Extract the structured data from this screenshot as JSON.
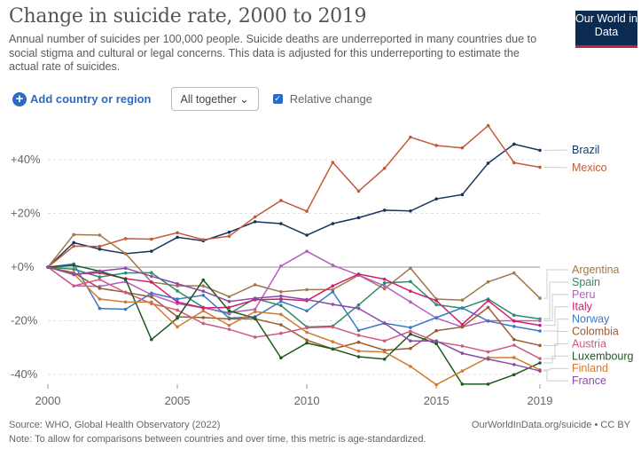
{
  "header": {
    "title": "Change in suicide rate, 2000 to 2019",
    "subtitle": "Annual number of suicides per 100,000 people. Suicide deaths are underreported in many countries due to social stigma and cultural or legal concerns. This data is adjusted for this underreporting to estimate the actual rate of suicides.",
    "logo": "Our World in Data"
  },
  "controls": {
    "add_label": "Add country or region",
    "select_value": "All together",
    "checkbox_label": "Relative change",
    "checkbox_checked": true
  },
  "footer": {
    "source": "Source: WHO, Global Health Observatory (2022)",
    "note": "Note: To allow for comparisons between countries and over time, this metric is age-standardized.",
    "url": "OurWorldInData.org/suicide • CC BY"
  },
  "chart_data": {
    "type": "line",
    "title": "Change in suicide rate, 2000 to 2019",
    "xlabel": "",
    "ylabel": "Relative change (%)",
    "xlim": [
      2000,
      2019
    ],
    "ylim": [
      -45,
      55
    ],
    "x_ticks": [
      2000,
      2005,
      2010,
      2015,
      2019
    ],
    "y_ticks": [
      {
        "v": 40,
        "label": "+40%"
      },
      {
        "v": 20,
        "label": "+20%"
      },
      {
        "v": 0,
        "label": "+0%"
      },
      {
        "v": -20,
        "label": "-20%"
      },
      {
        "v": -40,
        "label": "-40%"
      }
    ],
    "x": [
      2000,
      2001,
      2002,
      2003,
      2004,
      2005,
      2006,
      2007,
      2008,
      2009,
      2010,
      2011,
      2012,
      2013,
      2014,
      2015,
      2016,
      2017,
      2018,
      2019
    ],
    "series": [
      {
        "name": "Brazil",
        "color": "#17345f",
        "values": [
          0,
          9.1,
          6.7,
          5.0,
          5.9,
          11.1,
          9.8,
          13.0,
          16.9,
          16.2,
          11.9,
          16.2,
          18.4,
          21.2,
          20.9,
          25.4,
          27.0,
          38.7,
          45.8,
          43.5
        ]
      },
      {
        "name": "Mexico",
        "color": "#c4583b",
        "values": [
          0,
          7.8,
          7.7,
          10.6,
          10.4,
          12.8,
          10.2,
          11.5,
          18.7,
          24.8,
          20.8,
          39.0,
          28.3,
          36.8,
          48.4,
          45.3,
          44.4,
          52.7,
          38.9,
          37.2
        ]
      },
      {
        "name": "Argentina",
        "color": "#a4774a",
        "values": [
          0,
          12.1,
          11.9,
          5.0,
          -5.6,
          -7,
          -7,
          -11,
          -6.6,
          -9.2,
          -8.4,
          -8.4,
          -3,
          -8.1,
          -0.4,
          -11.9,
          -12.3,
          -5.5,
          -2.2,
          -11.6
        ]
      },
      {
        "name": "Spain",
        "color": "#2f8a6a",
        "values": [
          0,
          -0.8,
          -3.7,
          -2.2,
          -2.1,
          -8.9,
          -15,
          -17.4,
          -11.7,
          -14.3,
          -22.3,
          -22,
          -14.1,
          -5.9,
          -5.4,
          -14,
          -15.3,
          -11.9,
          -17.9,
          -19.3
        ]
      },
      {
        "name": "Peru",
        "color": "#b45fbf",
        "values": [
          0,
          -7,
          -7.2,
          -5.4,
          -10.3,
          -13.6,
          -15.2,
          -17,
          -15.7,
          0.4,
          5.9,
          0.7,
          -3,
          -7,
          -13,
          -19,
          -22.3,
          -20,
          -20,
          -20
        ]
      },
      {
        "name": "Italy",
        "color": "#d41c6c",
        "values": [
          0,
          -2.6,
          -2.1,
          -4.3,
          -5.6,
          -13,
          -15.2,
          -15,
          -12.2,
          -11.9,
          -12.5,
          -7,
          -2.6,
          -4.5,
          -9,
          -12.5,
          -21.4,
          -12.5,
          -20.1,
          -21.7
        ]
      },
      {
        "name": "Norway",
        "color": "#3a78c5",
        "values": [
          0,
          1.2,
          -15.4,
          -15.7,
          -9.7,
          -11.9,
          -10.5,
          -19,
          -18.5,
          -12.8,
          -16.3,
          -9.2,
          -23.6,
          -20.9,
          -22.5,
          -18.8,
          -15.2,
          -20.1,
          -22.1,
          -23.8
        ]
      },
      {
        "name": "Colombia",
        "color": "#9b5a30",
        "values": [
          0,
          -2.1,
          -7.9,
          -9.4,
          -11.1,
          -18.5,
          -18.8,
          -19.3,
          -19.3,
          -21.5,
          -27.2,
          -30.5,
          -28,
          -31,
          -30.3,
          -23.7,
          -22.3,
          -15,
          -27,
          -29.2
        ]
      },
      {
        "name": "Austria",
        "color": "#d05a7f",
        "values": [
          0,
          -7,
          -4.6,
          -9.5,
          -13.6,
          -16,
          -21,
          -23.2,
          -26.1,
          -24.7,
          -22.6,
          -22.3,
          -25.4,
          -27.5,
          -23.9,
          -27.8,
          -29.4,
          -31.6,
          -29.1,
          -34.1
        ]
      },
      {
        "name": "Luxembourg",
        "color": "#1e5a1f",
        "values": [
          0,
          0.7,
          -1.5,
          -4.5,
          -27,
          -19,
          -4.8,
          -16.3,
          -19,
          -33.8,
          -28.3,
          -30.5,
          -33.4,
          -34.3,
          -25,
          -28.5,
          -43.6,
          -43.6,
          -40.1,
          -35.7
        ]
      },
      {
        "name": "Finland",
        "color": "#d27a30",
        "values": [
          0,
          -2.6,
          -11.9,
          -13,
          -13,
          -22.3,
          -16.3,
          -21.7,
          -16.6,
          -17.6,
          -24.3,
          -27.8,
          -31.3,
          -31.6,
          -37,
          -43.8,
          -38.7,
          -33.7,
          -33.7,
          -38.3
        ]
      },
      {
        "name": "France",
        "color": "#8a4aaa",
        "values": [
          0,
          -2.8,
          -1.5,
          -0.4,
          -3.4,
          -6.2,
          -9,
          -12.8,
          -11.6,
          -10.8,
          -12.1,
          -13.9,
          -15.4,
          -20.9,
          -27.5,
          -27.5,
          -32.1,
          -34.3,
          -36.3,
          -38.7
        ]
      }
    ]
  }
}
